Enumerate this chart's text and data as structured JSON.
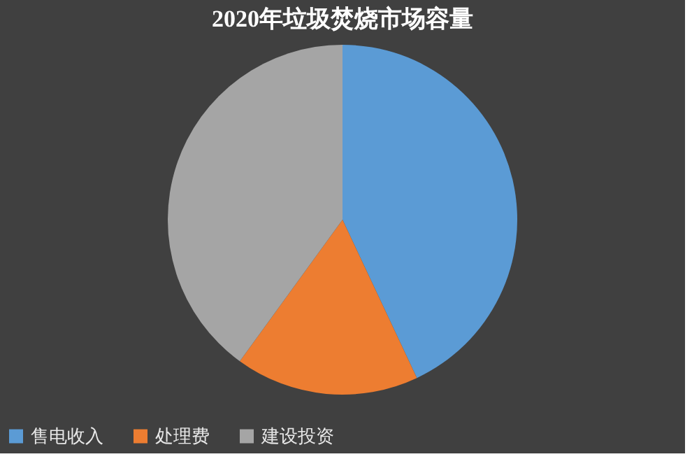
{
  "chart_data": {
    "type": "pie",
    "title": "2020年垃圾焚烧市场容量",
    "categories": [
      "售电收入",
      "处理费",
      "建设投资"
    ],
    "values": [
      43,
      17,
      40
    ],
    "colors": [
      "#5b9bd5",
      "#ed7d31",
      "#a5a5a5"
    ],
    "legend": "bottom"
  }
}
